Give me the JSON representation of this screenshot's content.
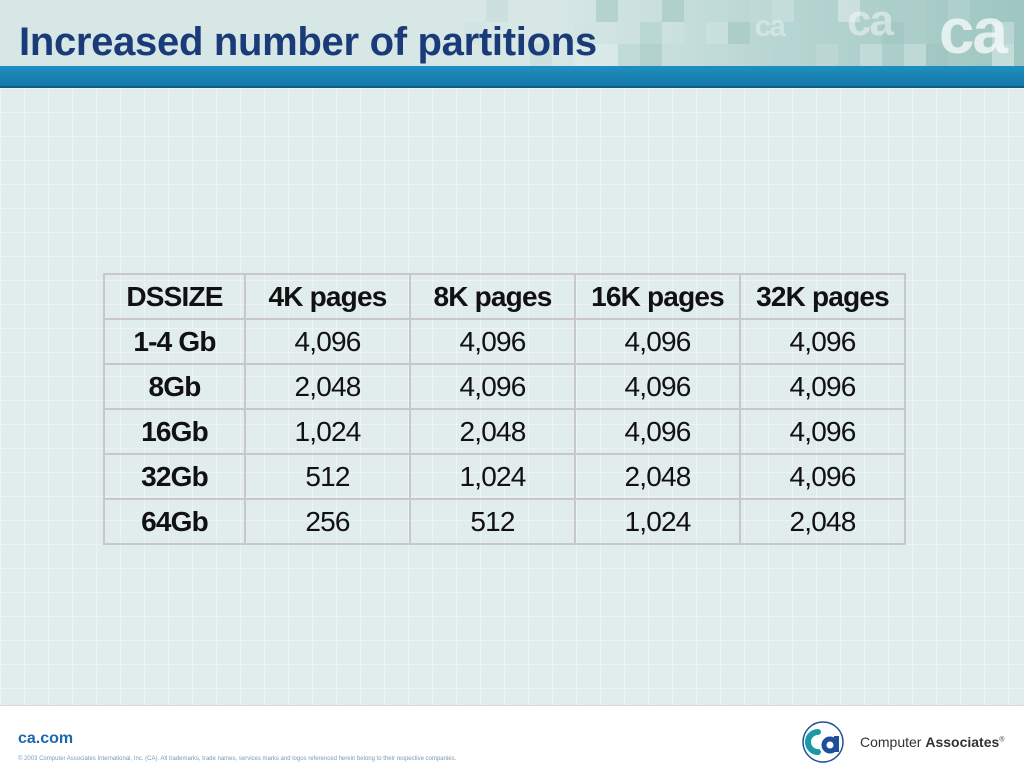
{
  "slide": {
    "title": "Increased number of partitions",
    "watermark_text": "ca"
  },
  "table": {
    "headers": [
      "DSSIZE",
      "4K pages",
      "8K pages",
      "16K pages",
      "32K pages"
    ],
    "rows": [
      {
        "label": "1-4 Gb",
        "values": [
          "4,096",
          "4,096",
          "4,096",
          "4,096"
        ]
      },
      {
        "label": "8Gb",
        "values": [
          "2,048",
          "4,096",
          "4,096",
          "4,096"
        ]
      },
      {
        "label": "16Gb",
        "values": [
          "1,024",
          "2,048",
          "4,096",
          "4,096"
        ]
      },
      {
        "label": "32Gb",
        "values": [
          "512",
          "1,024",
          "2,048",
          "4,096"
        ]
      },
      {
        "label": "64Gb",
        "values": [
          "256",
          "512",
          "1,024",
          "2,048"
        ]
      }
    ]
  },
  "footer": {
    "site": "ca.com",
    "copyright": "© 2003 Computer Associates International, Inc. (CA). All trademarks, trade names, services marks and logos referenced herein belong to their respective companies.",
    "logo_word_1": "Computer",
    "logo_word_2": "Associates",
    "logo_reg": "®"
  },
  "colors": {
    "title": "#1a3a78",
    "title_bar": "#1478a8",
    "site_link": "#1f66b0",
    "logo_teal": "#1a9aa8",
    "logo_blue": "#1f4f9a"
  },
  "icons": {
    "logo": "ca-logo-icon"
  }
}
